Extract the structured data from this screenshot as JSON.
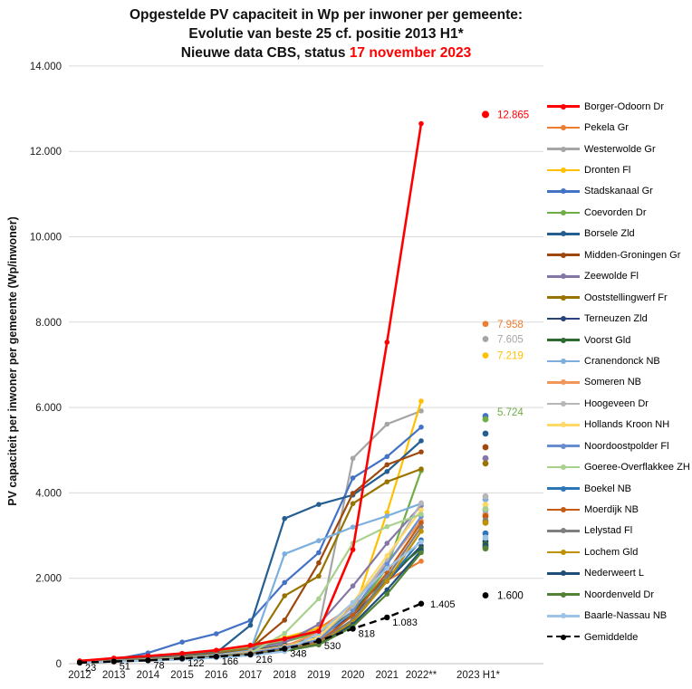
{
  "title": {
    "line1": "Opgestelde PV capaciteit in Wp per inwoner per gemeente:",
    "line2": "Evolutie van beste 25 cf. positie 2013 H1*",
    "line3_prefix": "Nieuwe data CBS, status ",
    "line3_date": "17 november 2023",
    "date_color": "#FF0000"
  },
  "axes": {
    "y_label": "PV capaciteit per inwoner per gemeente (Wp/inwoner)",
    "y_ticks": [
      {
        "value": 0,
        "label": "0"
      },
      {
        "value": 2000,
        "label": "2.000"
      },
      {
        "value": 4000,
        "label": "4.000"
      },
      {
        "value": 6000,
        "label": "6.000"
      },
      {
        "value": 8000,
        "label": "8.000"
      },
      {
        "value": 10000,
        "label": "10.000"
      },
      {
        "value": 12000,
        "label": "12.000"
      },
      {
        "value": 14000,
        "label": "14.000"
      }
    ],
    "grid_color": "#d9d9d9",
    "axis_color": "#bfbfbf"
  },
  "chart_data": {
    "type": "line",
    "title": "Opgestelde PV capaciteit in Wp per inwoner per gemeente: Evolutie van beste 25 cf. positie 2013 H1*",
    "xlabel": "",
    "ylabel": "PV capaciteit per inwoner per gemeente (Wp/inwoner)",
    "ylim": [
      0,
      14000
    ],
    "grid": "horizontal",
    "legend_position": "right",
    "x": [
      "2012",
      "2013",
      "2014",
      "2015",
      "2016",
      "2017",
      "2018",
      "2019",
      "2020",
      "2021",
      "2022**"
    ],
    "extra_x": "2023 H1*",
    "series": [
      {
        "name": "Borger-Odoorn Dr",
        "color": "#FF0000",
        "values": [
          65,
          130,
          180,
          240,
          315,
          430,
          580,
          760,
          2670,
          7530,
          12650
        ],
        "h1": 12865,
        "h1_label": "12.865"
      },
      {
        "name": "Pekela Gr",
        "color": "#ED7D31",
        "values": [
          60,
          120,
          165,
          215,
          285,
          385,
          530,
          820,
          1350,
          1950,
          2400
        ],
        "h1": 7958,
        "h1_label": "7.958"
      },
      {
        "name": "Westerwolde Gr",
        "color": "#A5A5A5",
        "values": [
          55,
          112,
          155,
          205,
          275,
          375,
          520,
          830,
          4810,
          5610,
          5920
        ],
        "h1": 7605,
        "h1_label": "7.605"
      },
      {
        "name": "Dronten Fl",
        "color": "#FFC000",
        "values": [
          52,
          106,
          150,
          210,
          300,
          420,
          610,
          830,
          1150,
          3540,
          6150
        ],
        "h1": 7219,
        "h1_label": "7.219"
      },
      {
        "name": "Stadskanaal Gr",
        "color": "#4472C4",
        "values": [
          50,
          102,
          250,
          505,
          700,
          1010,
          1900,
          2600,
          4350,
          4850,
          5540
        ],
        "h1": 5800,
        "h1_label": null
      },
      {
        "name": "Coevorden Dr",
        "color": "#70AD47",
        "values": [
          48,
          96,
          140,
          195,
          265,
          365,
          510,
          730,
          1150,
          2250,
          4520
        ],
        "h1": 5724,
        "h1_label": "5.724"
      },
      {
        "name": "Borsele Zld",
        "color": "#255E91",
        "values": [
          46,
          92,
          132,
          185,
          255,
          900,
          3400,
          3730,
          3950,
          4500,
          5220
        ],
        "h1": 5390,
        "h1_label": null
      },
      {
        "name": "Midden-Groningen Gr",
        "color": "#9E480E",
        "values": [
          44,
          88,
          125,
          175,
          245,
          350,
          1020,
          2360,
          3990,
          4660,
          4960
        ],
        "h1": 5070,
        "h1_label": null
      },
      {
        "name": "Zeewolde Fl",
        "color": "#8477A5",
        "values": [
          42,
          84,
          122,
          172,
          240,
          345,
          490,
          920,
          1820,
          2820,
          3700
        ],
        "h1": 4810,
        "h1_label": null
      },
      {
        "name": "Ooststellingwerf Fr",
        "color": "#997300",
        "values": [
          40,
          80,
          118,
          165,
          235,
          335,
          1590,
          2050,
          3750,
          4260,
          4560
        ],
        "h1": 4690,
        "h1_label": null
      },
      {
        "name": "Terneuzen Zld",
        "color": "#264478",
        "values": [
          39,
          77,
          113,
          155,
          215,
          305,
          430,
          620,
          1130,
          1930,
          2760
        ],
        "h1": 2860,
        "h1_label": null
      },
      {
        "name": "Voorst Gld",
        "color": "#2E6B30",
        "values": [
          37,
          74,
          108,
          148,
          205,
          295,
          420,
          620,
          1230,
          2030,
          2700
        ],
        "h1": 2800,
        "h1_label": null
      },
      {
        "name": "Cranendonck NB",
        "color": "#7CAFDD",
        "values": [
          36,
          71,
          103,
          143,
          205,
          305,
          2570,
          2880,
          3200,
          3460,
          3750
        ],
        "h1": 3850,
        "h1_label": null
      },
      {
        "name": "Someren NB",
        "color": "#F1975A",
        "values": [
          35,
          69,
          101,
          141,
          195,
          285,
          410,
          720,
          1430,
          2340,
          3350
        ],
        "h1": 3500,
        "h1_label": null
      },
      {
        "name": "Hoogeveen Dr",
        "color": "#B7B7B7",
        "values": [
          33,
          66,
          97,
          137,
          192,
          275,
          395,
          615,
          1330,
          2430,
          3770
        ],
        "h1": 3920,
        "h1_label": null
      },
      {
        "name": "Hollands Kroon NH",
        "color": "#FFD966",
        "values": [
          32,
          64,
          94,
          132,
          188,
          265,
          385,
          615,
          1430,
          2530,
          3600
        ],
        "h1": 3720,
        "h1_label": null
      },
      {
        "name": "Noordoostpolder Fl",
        "color": "#698ED0",
        "values": [
          31,
          62,
          91,
          127,
          183,
          255,
          375,
          560,
          1230,
          2330,
          3450
        ],
        "h1": 3600,
        "h1_label": null
      },
      {
        "name": "Goeree-Overflakkee ZH",
        "color": "#A9D18E",
        "values": [
          30,
          60,
          89,
          122,
          173,
          245,
          710,
          1520,
          2820,
          3210,
          3500
        ],
        "h1": 3620,
        "h1_label": null
      },
      {
        "name": "Boekel NB",
        "color": "#2E75B6",
        "values": [
          29,
          58,
          86,
          117,
          168,
          235,
          345,
          510,
          1030,
          1930,
          2900
        ],
        "h1": 3050,
        "h1_label": null
      },
      {
        "name": "Moerdijk NB",
        "color": "#C55A11",
        "values": [
          28,
          56,
          83,
          114,
          162,
          235,
          335,
          510,
          1130,
          2130,
          3300
        ],
        "h1": 3450,
        "h1_label": null
      },
      {
        "name": "Lelystad Fl",
        "color": "#7F7F7F",
        "values": [
          27,
          54,
          81,
          112,
          157,
          225,
          325,
          490,
          1030,
          2030,
          3200
        ],
        "h1": 3350,
        "h1_label": null
      },
      {
        "name": "Lochem Gld",
        "color": "#BF9000",
        "values": [
          26,
          52,
          79,
          110,
          152,
          215,
          315,
          470,
          970,
          1930,
          3100
        ],
        "h1": 3300,
        "h1_label": null
      },
      {
        "name": "Nederweert L",
        "color": "#1F4E79",
        "values": [
          25,
          51,
          76,
          107,
          147,
          205,
          305,
          450,
          920,
          1730,
          2650
        ],
        "h1": 2750,
        "h1_label": null
      },
      {
        "name": "Noordenveld Dr",
        "color": "#538135",
        "values": [
          24,
          49,
          73,
          102,
          142,
          198,
          295,
          440,
          870,
          1630,
          2600
        ],
        "h1": 2700,
        "h1_label": null
      },
      {
        "name": "Baarle-Nassau NB",
        "color": "#9DC3E6",
        "values": [
          23,
          47,
          71,
          97,
          137,
          192,
          285,
          710,
          1430,
          2230,
          2850
        ],
        "h1": 2950,
        "h1_label": null
      },
      {
        "name": "Gemiddelde",
        "color": "#000000",
        "dashed": true,
        "values": [
          23,
          51,
          78,
          122,
          166,
          216,
          348,
          530,
          818,
          1083,
          1405
        ],
        "h1": 1600,
        "h1_label": "1.600",
        "point_labels": [
          "23",
          "51",
          "78",
          "122",
          "166",
          "216",
          "348",
          "530",
          "818",
          "1.083",
          "1.405"
        ]
      }
    ]
  }
}
